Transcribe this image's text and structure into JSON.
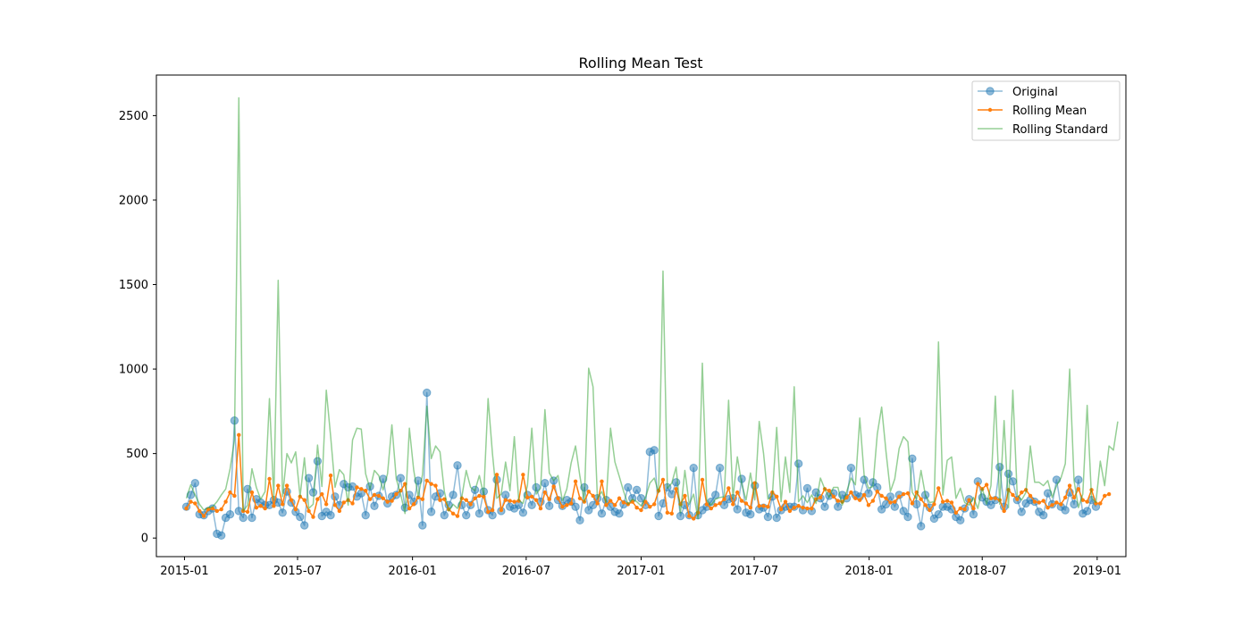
{
  "chart_data": {
    "type": "line",
    "title": "Rolling Mean Test",
    "xlabel": "",
    "ylabel": "",
    "x_date_range": [
      "2015-01-04",
      "2018-12-30"
    ],
    "x_step_days": 7,
    "xlim": [
      "2014-11-17",
      "2019-02-16"
    ],
    "ylim": [
      -110,
      2740
    ],
    "x_ticks": [
      "2015-01-01",
      "2015-07-01",
      "2016-01-01",
      "2016-07-01",
      "2017-01-01",
      "2017-07-01",
      "2018-01-01",
      "2018-07-01",
      "2019-01-01"
    ],
    "x_tick_labels": [
      "2015-01",
      "2015-07",
      "2016-01",
      "2016-07",
      "2017-01",
      "2017-07",
      "2018-01",
      "2018-07",
      "2019-01"
    ],
    "y_ticks": [
      0,
      500,
      1000,
      1500,
      2000,
      2500
    ],
    "y_tick_labels": [
      "0",
      "500",
      "1000",
      "1500",
      "2000",
      "2500"
    ],
    "legend_position": "top-right",
    "grid": false,
    "series": [
      {
        "name": "Original",
        "color": "#1f77b4",
        "style": "line-circle-markers",
        "values": [
          185,
          255,
          325,
          140,
          135,
          160,
          175,
          25,
          15,
          120,
          140,
          695,
          160,
          120,
          290,
          120,
          230,
          210,
          195,
          195,
          225,
          210,
          150,
          275,
          210,
          155,
          125,
          75,
          355,
          270,
          455,
          130,
          155,
          135,
          245,
          195,
          320,
          300,
          305,
          245,
          265,
          135,
          305,
          190,
          250,
          350,
          205,
          245,
          255,
          355,
          180,
          255,
          215,
          340,
          75,
          860,
          155,
          245,
          265,
          135,
          195,
          255,
          430,
          195,
          135,
          195,
          285,
          145,
          275,
          165,
          135,
          345,
          160,
          255,
          185,
          175,
          195,
          150,
          255,
          195,
          300,
          215,
          325,
          190,
          340,
          225,
          190,
          225,
          215,
          185,
          105,
          300,
          165,
          195,
          235,
          145,
          225,
          185,
          155,
          145,
          200,
          300,
          235,
          285,
          235,
          195,
          510,
          520,
          130,
          205,
          300,
          260,
          330,
          130,
          195,
          135,
          415,
          135,
          165,
          185,
          215,
          255,
          415,
          195,
          230,
          235,
          170,
          350,
          150,
          140,
          310,
          170,
          180,
          125,
          245,
          120,
          165,
          185,
          185,
          185,
          440,
          165,
          295,
          160,
          270,
          235,
          185,
          250,
          265,
          185,
          255,
          235,
          415,
          255,
          245,
          345,
          265,
          330,
          300,
          170,
          200,
          245,
          185,
          255,
          160,
          125,
          470,
          200,
          70,
          255,
          180,
          115,
          140,
          185,
          185,
          170,
          125,
          105,
          175,
          230,
          140,
          335,
          240,
          215,
          195,
          225,
          420,
          185,
          380,
          335,
          225,
          155,
          205,
          225,
          215,
          155,
          135,
          265,
          200,
          345,
          185,
          165,
          270,
          200,
          345,
          145,
          160,
          225,
          185
        ]
      },
      {
        "name": "Rolling Mean",
        "color": "#ff7f0e",
        "style": "line-point-markers",
        "values": [
          175,
          215,
          205,
          160,
          130,
          170,
          175,
          160,
          170,
          215,
          270,
          250,
          610,
          160,
          155,
          270,
          180,
          190,
          175,
          350,
          190,
          310,
          200,
          310,
          225,
          170,
          245,
          225,
          160,
          125,
          230,
          260,
          200,
          370,
          195,
          160,
          210,
          225,
          205,
          300,
          290,
          280,
          230,
          255,
          250,
          235,
          215,
          220,
          260,
          280,
          320,
          175,
          200,
          240,
          230,
          340,
          320,
          310,
          225,
          230,
          170,
          145,
          130,
          235,
          225,
          200,
          235,
          250,
          245,
          155,
          165,
          375,
          165,
          225,
          220,
          215,
          220,
          375,
          240,
          245,
          225,
          175,
          270,
          230,
          305,
          235,
          185,
          195,
          205,
          335,
          235,
          215,
          275,
          250,
          205,
          335,
          195,
          220,
          195,
          235,
          210,
          200,
          215,
          180,
          165,
          215,
          185,
          200,
          280,
          345,
          150,
          145,
          290,
          200,
          250,
          130,
          115,
          150,
          345,
          200,
          175,
          195,
          205,
          230,
          295,
          200,
          270,
          220,
          205,
          180,
          325,
          190,
          190,
          185,
          270,
          245,
          170,
          215,
          160,
          180,
          190,
          180,
          175,
          175,
          230,
          240,
          290,
          280,
          245,
          220,
          215,
          240,
          270,
          235,
          225,
          255,
          195,
          220,
          275,
          250,
          235,
          210,
          215,
          245,
          260,
          265,
          205,
          270,
          230,
          195,
          165,
          200,
          295,
          215,
          220,
          210,
          150,
          175,
          170,
          225,
          175,
          320,
          290,
          315,
          235,
          235,
          225,
          160,
          285,
          255,
          230,
          270,
          285,
          250,
          215,
          210,
          220,
          180,
          195,
          210,
          200,
          240,
          310,
          240,
          290,
          225,
          215,
          285,
          205,
          205,
          250,
          260
        ]
      },
      {
        "name": "Rolling Standard",
        "color": "#2ca02c",
        "style": "line",
        "values": [
          235,
          315,
          255,
          200,
          165,
          180,
          185,
          215,
          255,
          290,
          410,
          580,
          2605,
          160,
          195,
          410,
          300,
          230,
          275,
          825,
          230,
          1525,
          245,
          500,
          445,
          510,
          245,
          475,
          175,
          200,
          550,
          305,
          875,
          600,
          300,
          405,
          375,
          195,
          580,
          650,
          645,
          380,
          290,
          400,
          370,
          285,
          380,
          670,
          350,
          260,
          145,
          650,
          400,
          245,
          375,
          780,
          470,
          545,
          510,
          275,
          160,
          200,
          175,
          245,
          400,
          300,
          280,
          370,
          255,
          825,
          500,
          235,
          260,
          450,
          280,
          600,
          225,
          205,
          310,
          650,
          260,
          295,
          760,
          385,
          340,
          370,
          220,
          290,
          445,
          545,
          365,
          215,
          1005,
          895,
          235,
          275,
          210,
          650,
          450,
          365,
          275,
          200,
          230,
          215,
          190,
          240,
          325,
          355,
          270,
          1580,
          295,
          325,
          420,
          150,
          400,
          200,
          260,
          115,
          1035,
          225,
          195,
          230,
          240,
          245,
          815,
          235,
          480,
          320,
          225,
          385,
          225,
          690,
          500,
          230,
          250,
          655,
          215,
          480,
          270,
          895,
          215,
          250,
          210,
          255,
          205,
          355,
          290,
          240,
          300,
          300,
          195,
          275,
          355,
          315,
          710,
          370,
          295,
          305,
          615,
          775,
          510,
          275,
          350,
          530,
          600,
          570,
          270,
          230,
          400,
          255,
          210,
          215,
          1160,
          255,
          460,
          480,
          235,
          295,
          210,
          195,
          240,
          175,
          295,
          200,
          310,
          840,
          200,
          695,
          180,
          875,
          255,
          225,
          270,
          545,
          330,
          330,
          310,
          340,
          240,
          310,
          355,
          440,
          1000,
          340,
          180,
          260,
          785,
          235,
          210,
          455,
          310,
          545,
          520,
          690
        ]
      }
    ]
  }
}
